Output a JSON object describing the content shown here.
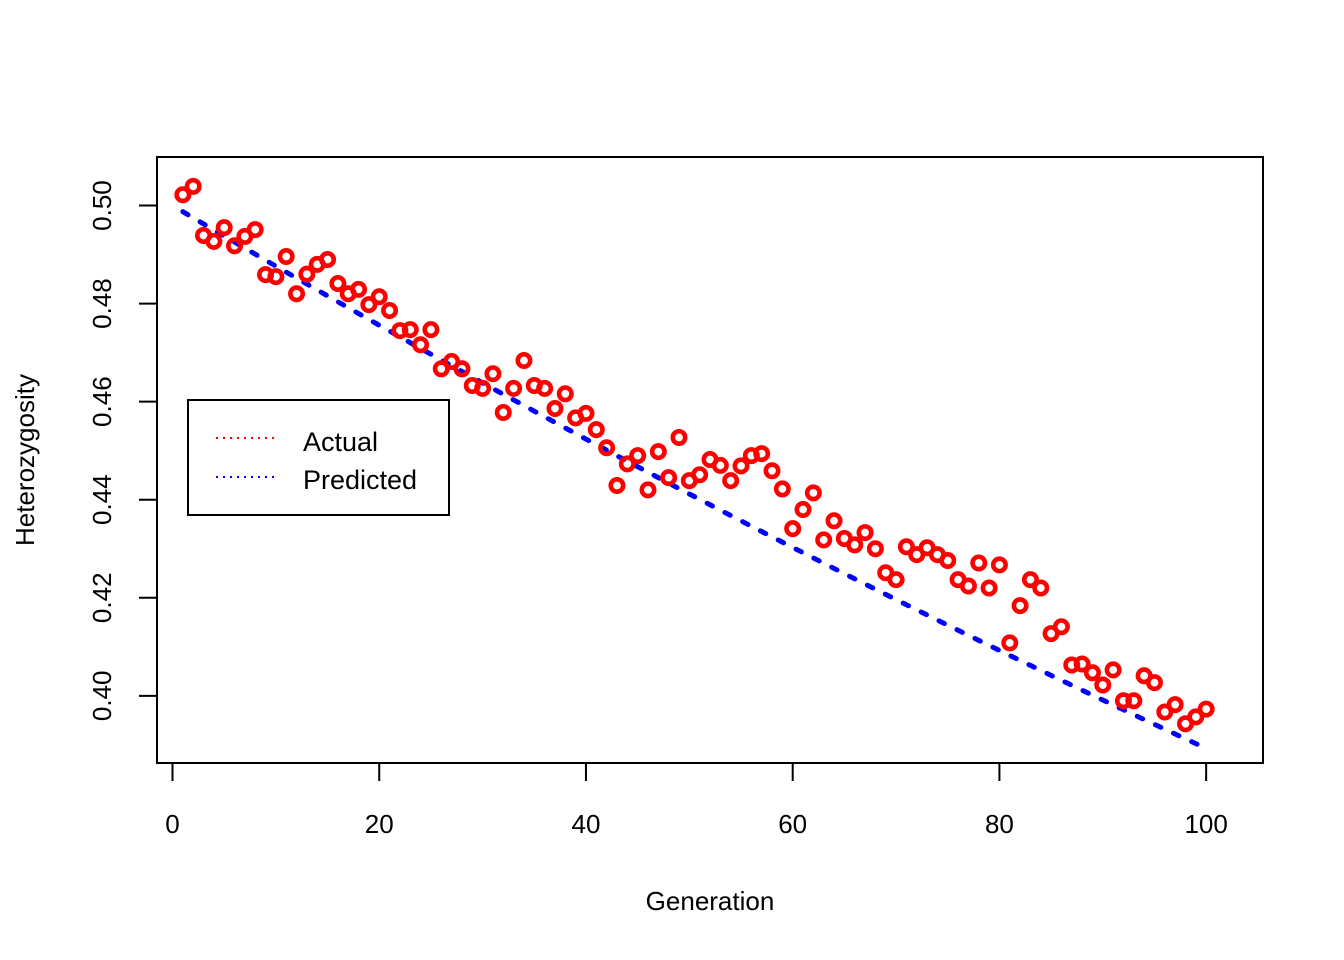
{
  "chart_data": {
    "type": "scatter",
    "title": "",
    "xlabel": "Generation",
    "ylabel": "Heterozygosity",
    "xlim": [
      -1.5,
      105.5
    ],
    "ylim": [
      0.3863,
      0.5099
    ],
    "xticks": [
      0,
      20,
      40,
      60,
      80,
      100
    ],
    "xtick_labels": [
      "0",
      "20",
      "40",
      "60",
      "80",
      "100"
    ],
    "yticks": [
      0.4,
      0.42,
      0.44,
      0.46,
      0.48,
      0.5
    ],
    "ytick_labels": [
      "0.40",
      "0.42",
      "0.44",
      "0.46",
      "0.48",
      "0.50"
    ],
    "grid": false,
    "legend": {
      "position": "left-middle",
      "entries": [
        {
          "label": "Actual",
          "color": "#ff0000",
          "style": "dotted"
        },
        {
          "label": "Predicted",
          "color": "#0000ff",
          "style": "dotted"
        }
      ]
    },
    "series": [
      {
        "name": "Actual",
        "kind": "points",
        "marker": "open-circle",
        "color": "#ff0000",
        "x": [
          1,
          2,
          3,
          4,
          5,
          6,
          7,
          8,
          9,
          10,
          11,
          12,
          13,
          14,
          15,
          16,
          17,
          18,
          19,
          20,
          21,
          22,
          23,
          24,
          25,
          26,
          27,
          28,
          29,
          30,
          31,
          32,
          33,
          34,
          35,
          36,
          37,
          38,
          39,
          40,
          41,
          42,
          43,
          44,
          45,
          46,
          47,
          48,
          49,
          50,
          51,
          52,
          53,
          54,
          55,
          56,
          57,
          58,
          59,
          60,
          61,
          62,
          63,
          64,
          65,
          66,
          67,
          68,
          69,
          70,
          71,
          72,
          73,
          74,
          75,
          76,
          77,
          78,
          79,
          80,
          81,
          82,
          83,
          84,
          85,
          86,
          87,
          88,
          89,
          90,
          91,
          92,
          93,
          94,
          95,
          96,
          97,
          98,
          99,
          100
        ],
        "y": [
          0.5022,
          0.5039,
          0.4939,
          0.4927,
          0.4955,
          0.4918,
          0.4937,
          0.4951,
          0.4859,
          0.4855,
          0.4896,
          0.482,
          0.486,
          0.488,
          0.489,
          0.4841,
          0.482,
          0.4829,
          0.4798,
          0.4814,
          0.4786,
          0.4745,
          0.4747,
          0.4716,
          0.4747,
          0.4667,
          0.4682,
          0.4667,
          0.4633,
          0.4627,
          0.4657,
          0.4578,
          0.4627,
          0.4684,
          0.4633,
          0.4627,
          0.4586,
          0.4616,
          0.4567,
          0.4576,
          0.4543,
          0.4506,
          0.4429,
          0.4473,
          0.449,
          0.442,
          0.4498,
          0.4445,
          0.4527,
          0.4439,
          0.4451,
          0.4482,
          0.447,
          0.4439,
          0.4469,
          0.449,
          0.4494,
          0.4459,
          0.4422,
          0.4341,
          0.438,
          0.4414,
          0.4318,
          0.4357,
          0.4321,
          0.4308,
          0.4333,
          0.43,
          0.4251,
          0.4237,
          0.4304,
          0.4288,
          0.4302,
          0.4288,
          0.4276,
          0.4237,
          0.4224,
          0.4271,
          0.422,
          0.4267,
          0.4108,
          0.4184,
          0.4237,
          0.422,
          0.4127,
          0.4141,
          0.4063,
          0.4065,
          0.4047,
          0.4022,
          0.4053,
          0.399,
          0.399,
          0.4041,
          0.4027,
          0.3967,
          0.3982,
          0.3943,
          0.3957,
          0.3973
        ]
      },
      {
        "name": "Predicted",
        "kind": "line",
        "line_style": "dotted",
        "color": "#0000ff",
        "x_range": [
          1,
          100
        ],
        "formula": "0.5*(1-1/400)^x",
        "x": [
          1,
          10,
          20,
          30,
          40,
          50,
          60,
          70,
          80,
          90,
          100
        ],
        "y": [
          0.4988,
          0.4877,
          0.4754,
          0.464,
          0.4524,
          0.4412,
          0.4302,
          0.4195,
          0.4091,
          0.3989,
          0.3895
        ]
      }
    ]
  }
}
